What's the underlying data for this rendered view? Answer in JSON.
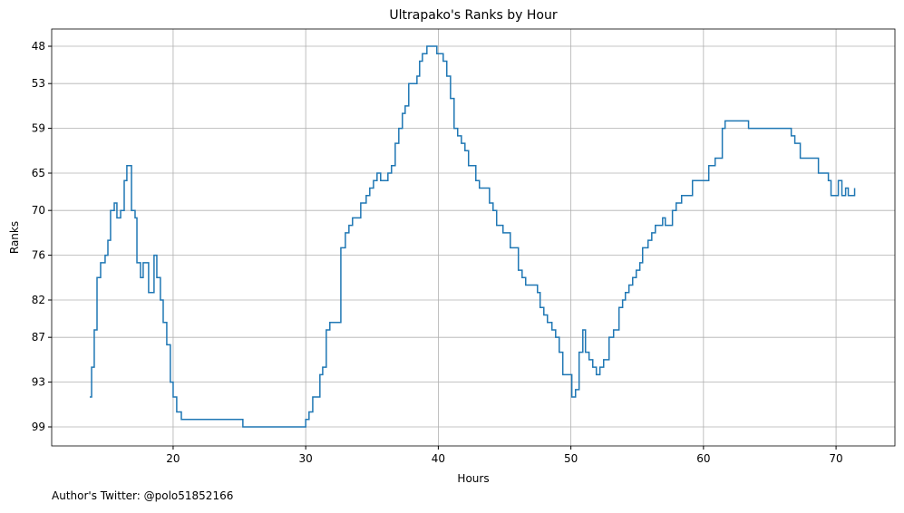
{
  "chart_data": {
    "type": "step",
    "title": "Ultrapako's Ranks by Hour",
    "x_label": "Hours",
    "y_label": "Ranks",
    "footnote": "Author's Twitter: @polo51852166",
    "grid": true,
    "y_inverted": true,
    "xlim": [
      10.84,
      74.44
    ],
    "xticks": [
      20,
      30,
      40,
      50,
      60,
      70
    ],
    "ylim": [
      101.55,
      45.69
    ],
    "yticks": [
      48,
      53,
      59,
      65,
      70,
      76,
      82,
      87,
      93,
      99
    ],
    "series": [
      {
        "name": "Ranks",
        "color": "#1f77b4",
        "x": [
          13.71,
          13.85,
          14.05,
          14.26,
          14.53,
          14.87,
          15.08,
          15.28,
          15.56,
          15.76,
          16.04,
          16.31,
          16.51,
          16.86,
          17.13,
          17.27,
          17.54,
          17.74,
          18.15,
          18.56,
          18.77,
          19.04,
          19.25,
          19.52,
          19.79,
          20,
          20.27,
          20.62,
          25.26,
          30,
          30.25,
          30.53,
          31.07,
          31.28,
          31.55,
          31.82,
          32.65,
          32.99,
          33.26,
          33.53,
          34.15,
          34.56,
          34.83,
          35.11,
          35.38,
          35.65,
          36.2,
          36.47,
          36.75,
          37.02,
          37.29,
          37.5,
          37.77,
          38.39,
          38.59,
          38.8,
          39.14,
          39.89,
          40.37,
          40.64,
          40.92,
          41.19,
          41.46,
          41.74,
          42.01,
          42.28,
          42.83,
          43.1,
          43.86,
          44.13,
          44.4,
          44.88,
          45.43,
          46.04,
          46.32,
          46.59,
          47.48,
          47.68,
          47.96,
          48.23,
          48.57,
          48.85,
          49.12,
          49.39,
          50.07,
          50.35,
          50.62,
          50.9,
          51.1,
          51.37,
          51.65,
          51.92,
          52.19,
          52.47,
          52.88,
          53.22,
          53.63,
          53.9,
          54.11,
          54.38,
          54.66,
          54.93,
          55.2,
          55.41,
          55.82,
          56.1,
          56.37,
          56.92,
          57.12,
          57.66,
          57.94,
          58.35,
          59.17,
          60.4,
          60.88,
          61.42,
          61.63,
          63.4,
          66.62,
          66.89,
          67.3,
          68.67,
          69.42,
          69.62,
          70.17,
          70.44,
          70.72,
          70.92,
          71.4
        ],
        "values": [
          95,
          91,
          86,
          79,
          77,
          76,
          74,
          70,
          69,
          71,
          70,
          66,
          64,
          70,
          71,
          77,
          79,
          77,
          81,
          76,
          79,
          82,
          85,
          88,
          93,
          95,
          97,
          98,
          99,
          98,
          97,
          95,
          92,
          91,
          86,
          85,
          75,
          73,
          72,
          71,
          69,
          68,
          67,
          66,
          65,
          66,
          65,
          64,
          61,
          59,
          57,
          56,
          53,
          52,
          50,
          49,
          48,
          49,
          50,
          52,
          55,
          59,
          60,
          61,
          62,
          64,
          66,
          67,
          69,
          70,
          72,
          73,
          75,
          78,
          79,
          80,
          81,
          83,
          84,
          85,
          86,
          87,
          89,
          92,
          95,
          94,
          89,
          86,
          89,
          90,
          91,
          92,
          91,
          90,
          87,
          86,
          83,
          82,
          81,
          80,
          79,
          78,
          77,
          75,
          74,
          73,
          72,
          71,
          72,
          70,
          69,
          68,
          66,
          64,
          63,
          59,
          58,
          59,
          60,
          61,
          63,
          65,
          66,
          68,
          66,
          68,
          67,
          68,
          67
        ]
      }
    ]
  }
}
